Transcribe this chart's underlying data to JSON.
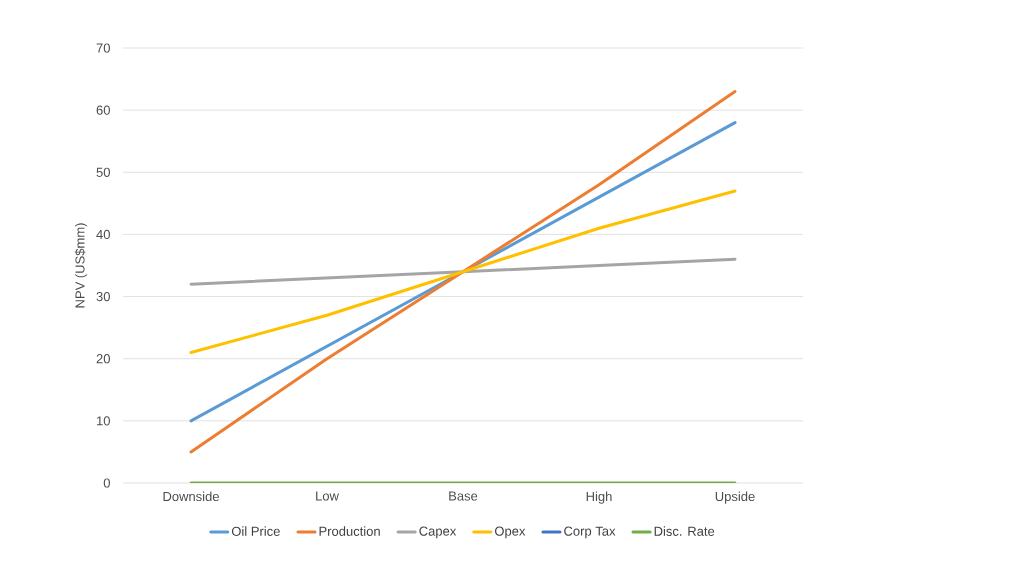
{
  "chart_data": {
    "type": "line",
    "ylabel": "NPV (US$mm)",
    "categories": [
      "Downside",
      "Low",
      "Base",
      "High",
      "Upside"
    ],
    "series": [
      {
        "name": "Oil Price",
        "color": "#5b9bd5",
        "values": [
          10,
          22,
          34,
          46,
          58
        ]
      },
      {
        "name": "Production",
        "color": "#ed7d31",
        "values": [
          5,
          20,
          34,
          48,
          63
        ]
      },
      {
        "name": "Capex",
        "color": "#a5a5a5",
        "values": [
          32,
          33,
          34,
          35,
          36
        ]
      },
      {
        "name": "Opex",
        "color": "#ffc000",
        "values": [
          21,
          27,
          34,
          41,
          47
        ]
      },
      {
        "name": "Corp Tax",
        "color": "#4472c4",
        "values": [
          null,
          null,
          null,
          null,
          null
        ]
      },
      {
        "name": "Disc. Rate",
        "color": "#70ad47",
        "values": [
          0,
          0,
          0,
          0,
          0
        ]
      }
    ],
    "ylim": [
      0,
      70
    ],
    "yticks": [
      0,
      10,
      20,
      30,
      40,
      50,
      60,
      70
    ],
    "grid": "y",
    "legend": "bottom",
    "marker": "none",
    "line_style": "solid"
  }
}
